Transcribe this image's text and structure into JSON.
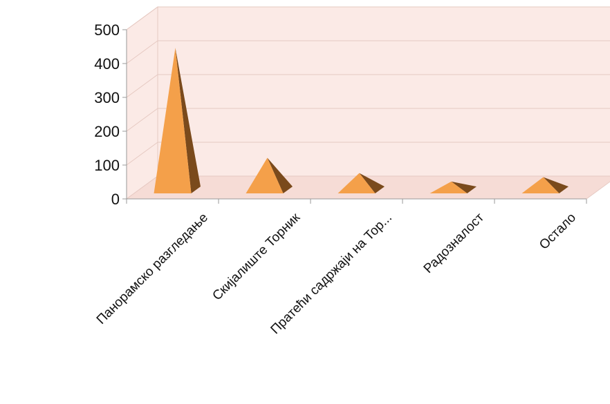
{
  "chart_data": {
    "type": "bar",
    "style": "3d-pyramid",
    "title": "",
    "xlabel": "",
    "ylabel": "",
    "ylim": [
      0,
      500
    ],
    "yticks": [
      0,
      100,
      200,
      300,
      400,
      500
    ],
    "grid": true,
    "legend": "none",
    "categories": [
      "Панорамско разгледање",
      "Скијалиште Торник",
      "Пратећи садржаји на Тор...",
      "Радозналост",
      "Остало"
    ],
    "values": [
      430,
      105,
      60,
      35,
      48
    ]
  },
  "colors": {
    "bar_front": "#f4a04a",
    "bar_side": "#7a4a1c",
    "wall": "#fbeae6",
    "floor": "#f6dcd6",
    "grid": "#e6c9c2",
    "axis": "#9a9a9a"
  },
  "yticks_text": [
    "0",
    "100",
    "200",
    "300",
    "400",
    "500"
  ]
}
